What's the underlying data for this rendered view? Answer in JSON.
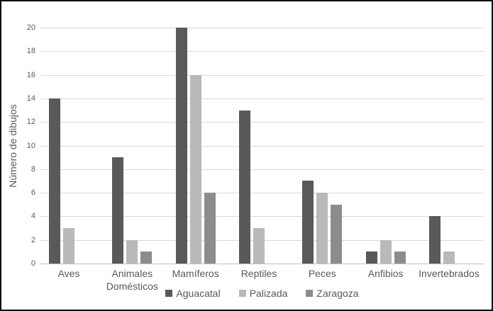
{
  "chart_data": {
    "type": "bar",
    "title": "",
    "xlabel": "",
    "ylabel": "Número de dibujos",
    "ylim": [
      0,
      20
    ],
    "ytick_step": 2,
    "grid": true,
    "legend_position": "bottom-center",
    "categories": [
      "Aves",
      "Animales Domésticos",
      "Mamíferos",
      "Reptiles",
      "Peces",
      "Anfibios",
      "Invertebrados"
    ],
    "series": [
      {
        "name": "Aguacatal",
        "color": "#595959",
        "values": [
          14,
          9,
          20,
          13,
          7,
          1,
          4
        ]
      },
      {
        "name": "Palizada",
        "color": "#b9b9b9",
        "values": [
          3,
          2,
          16,
          3,
          6,
          2,
          1
        ]
      },
      {
        "name": "Zaragoza",
        "color": "#8c8c8c",
        "values": [
          0,
          1,
          6,
          0,
          5,
          1,
          0
        ]
      }
    ]
  },
  "colors": {
    "gridline": "#d9d9d9",
    "axis_line": "#bfbfbf",
    "label_text": "#595959",
    "frame_border": "#0d0d0d"
  }
}
